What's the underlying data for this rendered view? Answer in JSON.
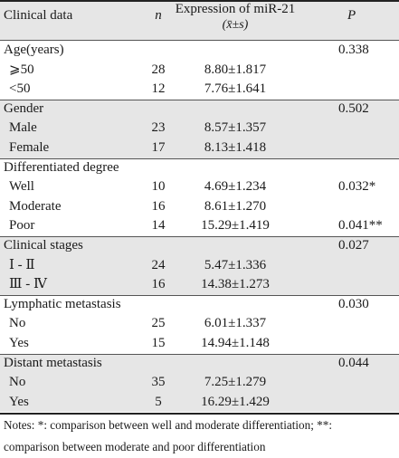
{
  "header": {
    "clinical_data": "Clinical data",
    "n": "n",
    "expression_line1": "Expression of miR-21",
    "expression_line2": "(x̄±s)",
    "p": "P"
  },
  "rows": [
    {
      "label": "Age(years)",
      "n": "",
      "expr": "",
      "p": "0.338",
      "group": true
    },
    {
      "label": "⩾50",
      "n": "28",
      "expr": "8.80±1.817",
      "p": ""
    },
    {
      "label": "<50",
      "n": "12",
      "expr": "7.76±1.641",
      "p": ""
    },
    {
      "label": "Gender",
      "n": "",
      "expr": "",
      "p": "0.502",
      "group": true
    },
    {
      "label": "Male",
      "n": "23",
      "expr": "8.57±1.357",
      "p": ""
    },
    {
      "label": "Female",
      "n": "17",
      "expr": "8.13±1.418",
      "p": ""
    },
    {
      "label": "Differentiated degree",
      "n": "",
      "expr": "",
      "p": "",
      "group": true
    },
    {
      "label": "Well",
      "n": "10",
      "expr": "4.69±1.234",
      "p": "0.032*"
    },
    {
      "label": "Moderate",
      "n": "16",
      "expr": "8.61±1.270",
      "p": ""
    },
    {
      "label": "Poor",
      "n": "14",
      "expr": "15.29±1.419",
      "p": "0.041**"
    },
    {
      "label": "Clinical stages",
      "n": "",
      "expr": "",
      "p": "0.027",
      "group": true
    },
    {
      "label": "Ⅰ - Ⅱ",
      "n": "24",
      "expr": "5.47±1.336",
      "p": ""
    },
    {
      "label": "Ⅲ - Ⅳ",
      "n": "16",
      "expr": "14.38±1.273",
      "p": ""
    },
    {
      "label": "Lymphatic metastasis",
      "n": "",
      "expr": "",
      "p": "0.030",
      "group": true
    },
    {
      "label": "No",
      "n": "25",
      "expr": "6.01±1.337",
      "p": ""
    },
    {
      "label": "Yes",
      "n": "15",
      "expr": "14.94±1.148",
      "p": ""
    },
    {
      "label": "Distant metastasis",
      "n": "",
      "expr": "",
      "p": "0.044",
      "group": true
    },
    {
      "label": "No",
      "n": "35",
      "expr": "7.25±1.279",
      "p": ""
    },
    {
      "label": "Yes",
      "n": "5",
      "expr": "16.29±1.429",
      "p": ""
    }
  ],
  "notes": {
    "line1": "Notes: *: comparison between well and moderate differentiation; **:",
    "line2": "comparison between moderate and poor differentiation"
  }
}
